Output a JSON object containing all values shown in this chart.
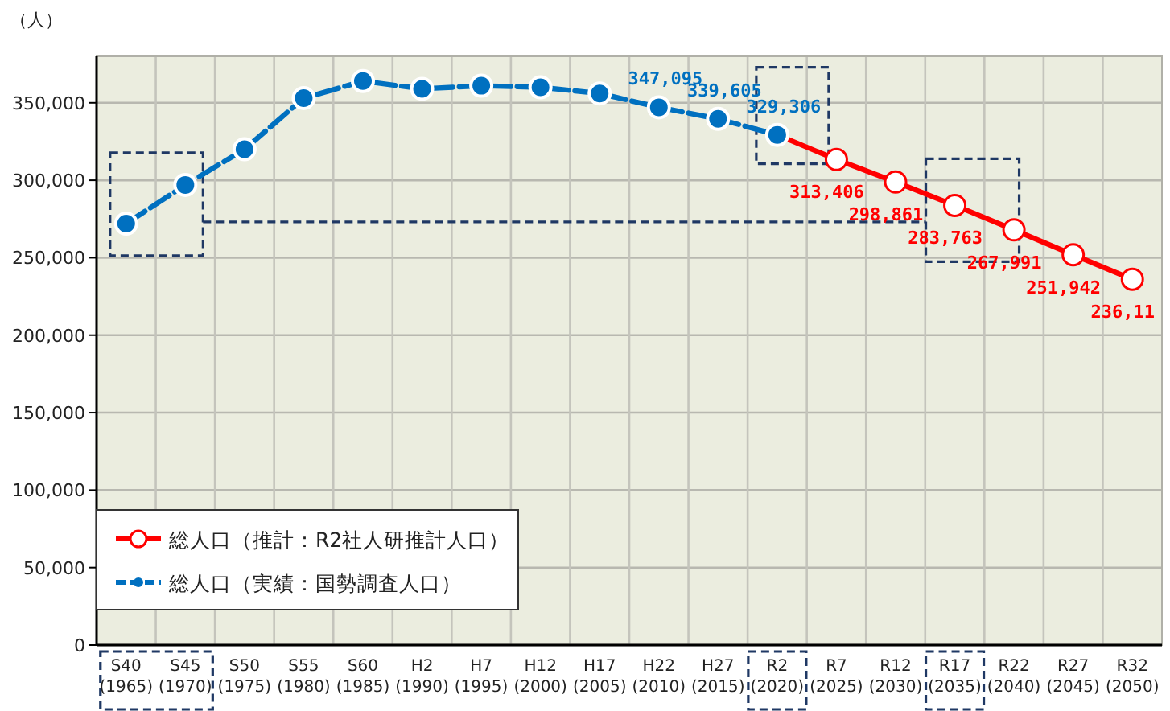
{
  "chart_data": {
    "type": "line",
    "ylabel": "（人）",
    "categories": [
      "S40 (1965)",
      "S45 (1970)",
      "S50 (1975)",
      "S55 (1980)",
      "S60 (1985)",
      "H2 (1990)",
      "H7 (1995)",
      "H12 (2000)",
      "H17 (2005)",
      "H22 (2010)",
      "H27 (2015)",
      "R2 (2020)",
      "R7 (2025)",
      "R12 (2030)",
      "R17 (2035)",
      "R22 (2040)",
      "R27 (2045)",
      "R32 (2050)"
    ],
    "series": [
      {
        "name": "総人口（推計：R2社人研推計人口）",
        "color": "#ff0000",
        "line_style": "solid",
        "values": [
          null,
          null,
          null,
          null,
          null,
          null,
          null,
          null,
          null,
          null,
          null,
          329306,
          313406,
          298861,
          283763,
          267991,
          251942,
          236110
        ],
        "value_labels": [
          null,
          null,
          null,
          null,
          null,
          null,
          null,
          null,
          null,
          null,
          null,
          null,
          "313,406",
          "298,861",
          "283,763",
          "267,991",
          "251,942",
          null
        ]
      },
      {
        "name": "総人口（実績：国勢調査人口）",
        "color": "#0070c0",
        "line_style": "dashed",
        "values": [
          272000,
          297000,
          320000,
          353000,
          364000,
          359000,
          361000,
          360000,
          356000,
          347095,
          339605,
          329306,
          null,
          null,
          null,
          null,
          null,
          null
        ],
        "value_labels": [
          null,
          null,
          null,
          null,
          null,
          null,
          null,
          null,
          null,
          "347,095",
          "339,605",
          "329,306",
          null,
          null,
          null,
          null,
          null,
          null
        ]
      }
    ],
    "ylim": [
      0,
      380000
    ],
    "yticks": [
      {
        "value": 0,
        "label": "0"
      },
      {
        "value": 50000,
        "label": "50,000"
      },
      {
        "value": 100000,
        "label": "100,000"
      },
      {
        "value": 150000,
        "label": "150,000"
      },
      {
        "value": 200000,
        "label": "200,000"
      },
      {
        "value": 250000,
        "label": "250,000"
      },
      {
        "value": 300000,
        "label": "300,000"
      },
      {
        "value": 350000,
        "label": "350,000"
      }
    ],
    "annotations": [
      "236,11"
    ],
    "grid": true,
    "legend": "bottom left",
    "marker": "circle"
  }
}
